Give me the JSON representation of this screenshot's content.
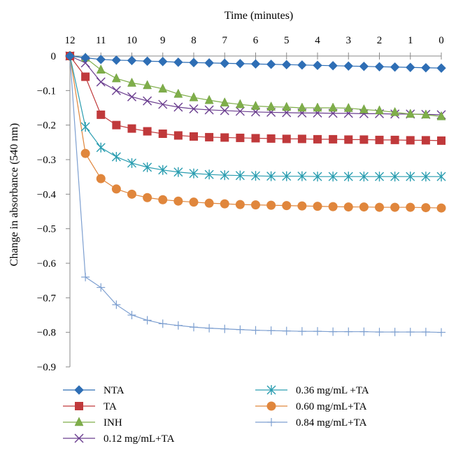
{
  "chart_data": {
    "type": "line",
    "xlabel": "Time (minutes)",
    "ylabel": "Change in absorbance (540 nm)",
    "x_ticks": [
      12,
      11,
      10,
      9,
      8,
      7,
      6,
      5,
      4,
      3,
      2,
      1,
      0
    ],
    "y_ticks": [
      "0",
      "−0.1",
      "−0.2",
      "−0.3",
      "−0.4",
      "−0.5",
      "−0.6",
      "−0.7",
      "−0.8",
      "−0.9"
    ],
    "xlim": [
      12,
      0
    ],
    "ylim": [
      -0.9,
      0
    ],
    "x": [
      12,
      11.5,
      11,
      10.5,
      10,
      9.5,
      9,
      8.5,
      8,
      7.5,
      7,
      6.5,
      6,
      5.5,
      5,
      4.5,
      4,
      3.5,
      3,
      2.5,
      2,
      1.5,
      1,
      0.5,
      0
    ],
    "legend_position": "bottom",
    "series": [
      {
        "name": "NTA",
        "marker": "diamond",
        "color": "#2e6eb5",
        "values": [
          0,
          -0.005,
          -0.01,
          -0.012,
          -0.013,
          -0.015,
          -0.016,
          -0.018,
          -0.019,
          -0.02,
          -0.021,
          -0.022,
          -0.023,
          -0.024,
          -0.025,
          -0.026,
          -0.027,
          -0.028,
          -0.029,
          -0.03,
          -0.031,
          -0.032,
          -0.033,
          -0.034,
          -0.035
        ]
      },
      {
        "name": "TA",
        "marker": "square",
        "color": "#c0393b",
        "values": [
          0,
          -0.06,
          -0.17,
          -0.2,
          -0.21,
          -0.218,
          -0.225,
          -0.23,
          -0.233,
          -0.235,
          -0.236,
          -0.237,
          -0.238,
          -0.239,
          -0.24,
          -0.24,
          -0.241,
          -0.241,
          -0.242,
          -0.242,
          -0.243,
          -0.243,
          -0.244,
          -0.244,
          -0.245
        ]
      },
      {
        "name": "INH",
        "marker": "triangle",
        "color": "#7fae4a",
        "values": [
          0,
          -0.005,
          -0.04,
          -0.065,
          -0.078,
          -0.085,
          -0.095,
          -0.11,
          -0.12,
          -0.128,
          -0.135,
          -0.14,
          -0.145,
          -0.147,
          -0.148,
          -0.15,
          -0.15,
          -0.15,
          -0.151,
          -0.155,
          -0.158,
          -0.163,
          -0.168,
          -0.17,
          -0.175
        ]
      },
      {
        "name": "0.12 mg/mL+TA",
        "marker": "x",
        "color": "#6b3e8f",
        "values": [
          0,
          -0.02,
          -0.075,
          -0.1,
          -0.118,
          -0.13,
          -0.14,
          -0.148,
          -0.153,
          -0.156,
          -0.158,
          -0.16,
          -0.162,
          -0.163,
          -0.164,
          -0.165,
          -0.165,
          -0.166,
          -0.166,
          -0.167,
          -0.167,
          -0.168,
          -0.168,
          -0.169,
          -0.17
        ]
      },
      {
        "name": "0.36 mg/mL +TA",
        "marker": "asterisk",
        "color": "#2a9db0",
        "values": [
          0,
          -0.205,
          -0.265,
          -0.292,
          -0.31,
          -0.322,
          -0.33,
          -0.336,
          -0.34,
          -0.343,
          -0.345,
          -0.346,
          -0.347,
          -0.348,
          -0.348,
          -0.348,
          -0.349,
          -0.349,
          -0.349,
          -0.349,
          -0.349,
          -0.349,
          -0.349,
          -0.349,
          -0.349
        ]
      },
      {
        "name": "0.60 mg/mL+TA",
        "marker": "circle",
        "color": "#e0863c",
        "values": [
          0,
          -0.282,
          -0.355,
          -0.385,
          -0.4,
          -0.41,
          -0.416,
          -0.42,
          -0.423,
          -0.426,
          -0.428,
          -0.43,
          -0.431,
          -0.432,
          -0.433,
          -0.434,
          -0.435,
          -0.436,
          -0.437,
          -0.437,
          -0.438,
          -0.438,
          -0.438,
          -0.439,
          -0.44
        ]
      },
      {
        "name": "0.84 mg/mL+TA",
        "marker": "plus",
        "color": "#7d9fd0",
        "values": [
          0,
          -0.64,
          -0.67,
          -0.72,
          -0.75,
          -0.765,
          -0.775,
          -0.78,
          -0.785,
          -0.788,
          -0.79,
          -0.792,
          -0.794,
          -0.795,
          -0.796,
          -0.797,
          -0.797,
          -0.798,
          -0.798,
          -0.798,
          -0.799,
          -0.799,
          -0.799,
          -0.799,
          -0.8
        ]
      }
    ]
  }
}
